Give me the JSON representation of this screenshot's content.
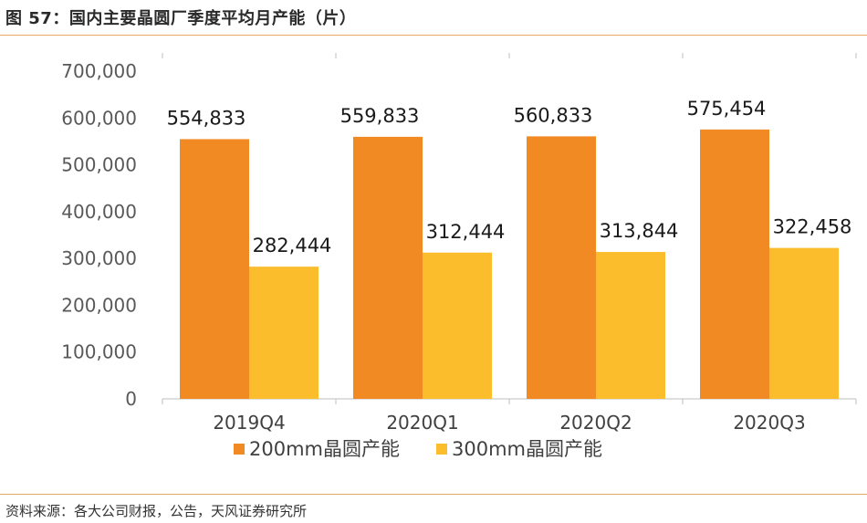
{
  "figure": {
    "title": "图 57：国内主要晶圆厂季度平均月产能（片）",
    "source": "资料来源：各大公司财报，公告，天风证券研究所"
  },
  "colors": {
    "series_200mm": "#f28a24",
    "series_300mm": "#fbbd2c",
    "rule": "#e8a96a",
    "axis": "#bfbfbf"
  },
  "chart_data": {
    "type": "bar",
    "title": "",
    "xlabel": "",
    "ylabel": "",
    "categories": [
      "2019Q4",
      "2020Q1",
      "2020Q2",
      "2020Q3"
    ],
    "series": [
      {
        "name": "200mm晶圆产能",
        "values": [
          554833,
          559833,
          560833,
          575454
        ],
        "labels": [
          "554,833",
          "559,833",
          "560,833",
          "575,454"
        ]
      },
      {
        "name": "300mm晶圆产能",
        "values": [
          282444,
          312444,
          313844,
          322458
        ],
        "labels": [
          "282,444",
          "312,444",
          "313,844",
          "322,458"
        ]
      }
    ],
    "ylim": [
      0,
      700000
    ],
    "yticks": [
      0,
      100000,
      200000,
      300000,
      400000,
      500000,
      600000,
      700000
    ],
    "ytick_labels": [
      "0",
      "100,000",
      "200,000",
      "300,000",
      "400,000",
      "500,000",
      "600,000",
      "700,000"
    ],
    "grid": false,
    "legend_position": "bottom"
  }
}
